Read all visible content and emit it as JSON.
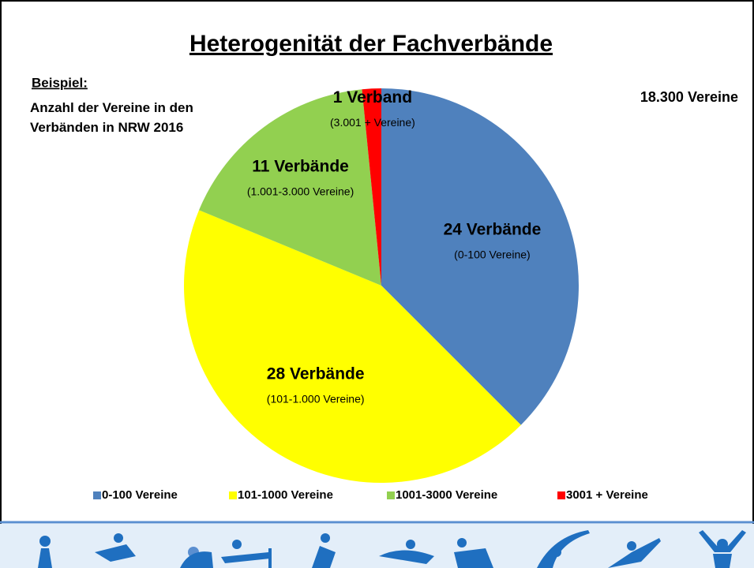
{
  "chart_data": {
    "type": "pie",
    "title": "Heterogenität der Fachverbände",
    "subtitle": "Beispiel:",
    "description": "Anzahl der Vereine in den Verbänden in NRW 2016",
    "total_label": "18.300 Vereine",
    "categories": [
      "0-100 Vereine",
      "101-1000 Vereine",
      "1001-3000 Vereine",
      "3001 + Vereine"
    ],
    "values": [
      24,
      28,
      11,
      1
    ],
    "value_labels": [
      "24 Verbände",
      "28 Verbände",
      "11 Verbände",
      "1 Verband"
    ],
    "range_labels": [
      "(0-100 Vereine)",
      "(101-1.000 Vereine)",
      "(1.001-3.000 Vereine)",
      "(3.001 + Vereine)"
    ],
    "colors": [
      "#4f81bd",
      "#ffff00",
      "#92d050",
      "#ff0000"
    ],
    "legend": "bottom"
  }
}
